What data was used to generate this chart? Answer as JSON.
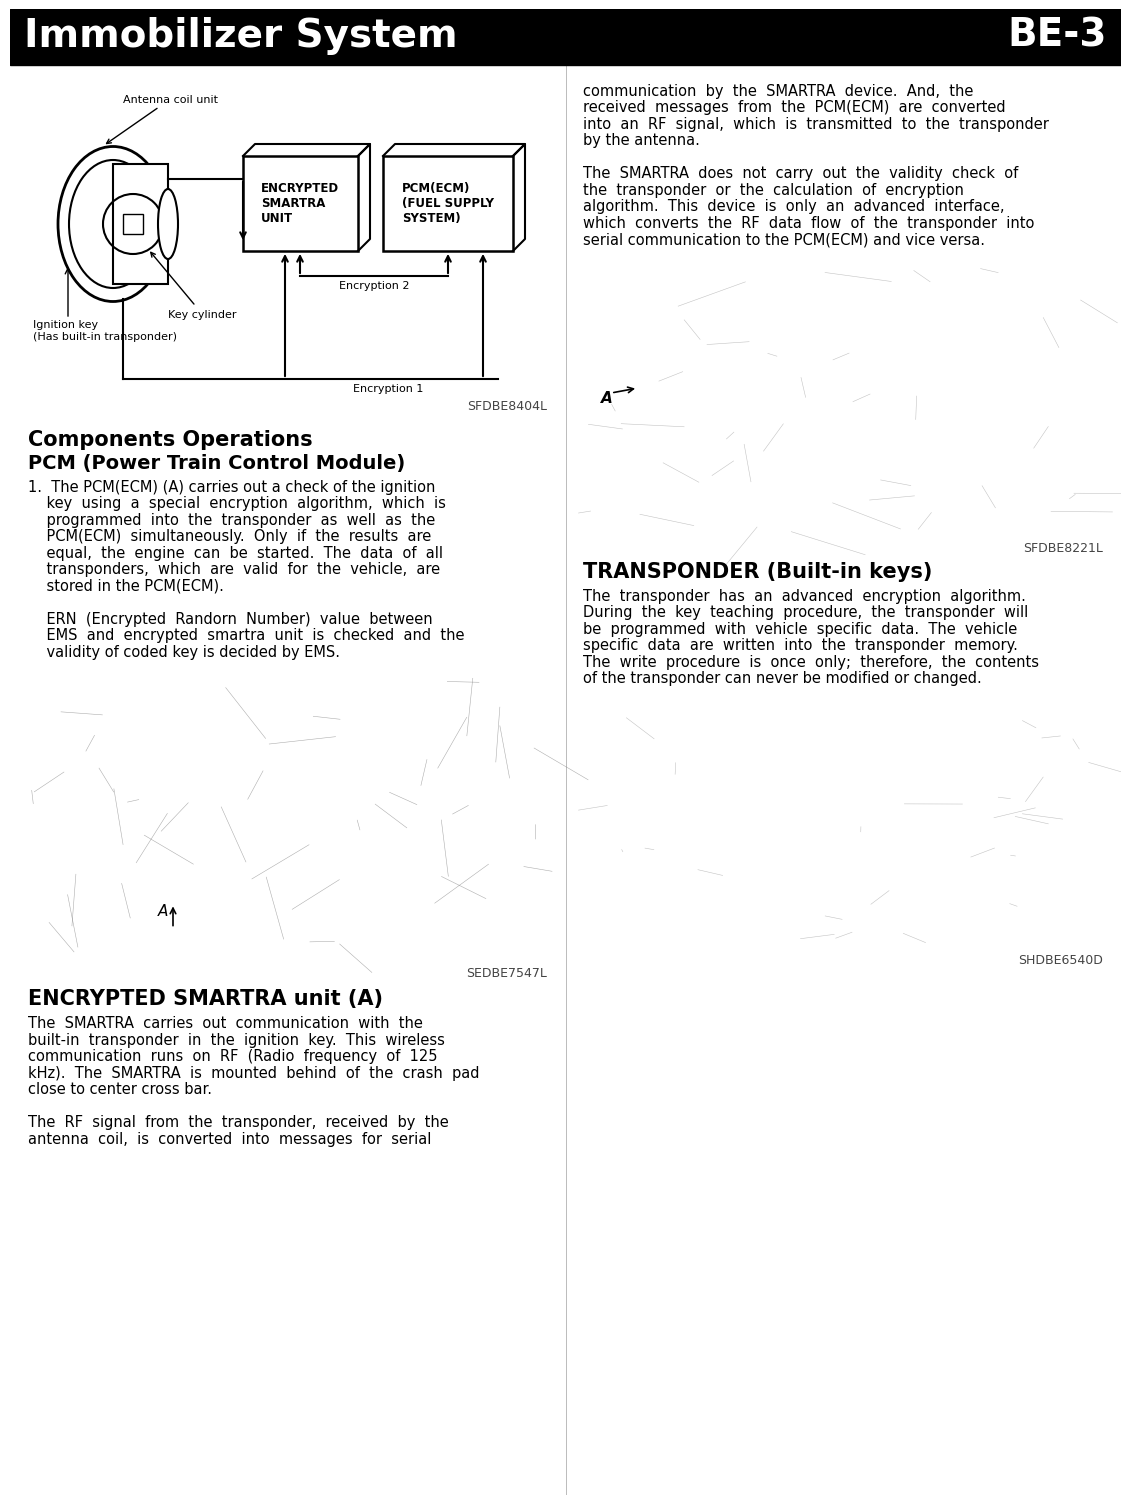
{
  "header_title": "Immobilizer System",
  "header_right": "BE-3",
  "header_bg": "#000000",
  "header_text_color": "#ffffff",
  "page_bg": "#ffffff",
  "body_text_color": "#000000",
  "diagram1_caption": "SFDBE8404L",
  "diagram1_labels": {
    "antenna_coil": "Antenna coil unit",
    "key_cylinder": "Key cylinder",
    "ignition_key": "Ignition key\n(Has built-in transponder)",
    "smartra_box": "ENCRYPTED\nSMARTRA\nUNIT",
    "pcm_box": "PCM(ECM)\n(FUEL SUPPLY\nSYSTEM)",
    "encryption2": "Encryption 2",
    "encryption1": "Encryption 1"
  },
  "section1_heading1": "Components Operations",
  "section1_heading2": "PCM (Power Train Control Module)",
  "diagram2_caption": "SEDBE7547L",
  "section2_heading": "ENCRYPTED SMARTRA unit (A)",
  "right_col_top_para1": "communication  by  the  SMARTRA  device.  And,  the\nreceived  messages  from  the  PCM(ECM)  are  converted\ninto  an  RF  signal,  which  is  transmitted  to  the  transponder\nby the antenna.",
  "right_col_top_para2": "The  SMARTRA  does  not  carry  out  the  validity  check  of\nthe  transponder  or  the  calculation  of  encryption\nalgorithm.  This  device  is  only  an  advanced  interface,\nwhich  converts  the  RF  data  flow  of  the  transponder  into\nserial communication to the PCM(ECM) and vice versa.",
  "diagram3_caption": "SFDBE8221L",
  "section3_heading": "TRANSPONDER (Built-in keys)",
  "diagram4_caption": "SHDBE6540D",
  "header_fontsize": 28,
  "body_fontsize": 10.5,
  "caption_fontsize": 9,
  "diagram_label_fontsize": 8,
  "heading1_fontsize": 15,
  "heading2_fontsize": 13
}
